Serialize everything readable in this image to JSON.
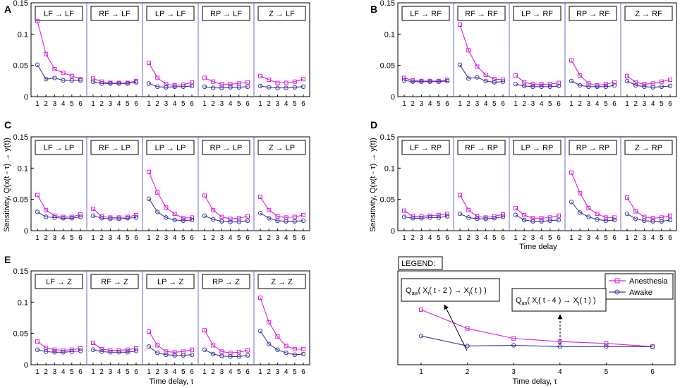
{
  "figure": {
    "panel_letters": [
      "A",
      "B",
      "C",
      "D",
      "E"
    ],
    "ylabel": "Sensitivity, Q(x(t - τ) → y(t))",
    "xlabel_D": "Time delay",
    "xlabel_E": "Time delay, τ",
    "x_ticks": [
      "1",
      "2",
      "3",
      "4",
      "5",
      "6"
    ],
    "y_ticks": [
      "0",
      "0.05",
      "0.1",
      "0.15"
    ]
  },
  "legend": {
    "title": "LEGEND:",
    "anesthesia_label": "Anesthesia",
    "awake_label": "Awake",
    "annotation_aw": "Q_aw(X_i(t-2) → X_j(t))",
    "annotation_an": "Q_an(X_i(t-4) → X_j(t))",
    "xlabel": "Time delay, τ",
    "x_ticks": [
      "1",
      "2",
      "3",
      "4",
      "5",
      "6"
    ]
  },
  "colors": {
    "anesthesia": "#d81fd8",
    "awake": "#3a3aa6",
    "divider": "#6b6bd0"
  },
  "chart_data": {
    "type": "line",
    "x": [
      1,
      2,
      3,
      4,
      5,
      6
    ],
    "ylim": [
      0,
      0.15
    ],
    "series_names": [
      "Anesthesia",
      "Awake"
    ],
    "panels": [
      {
        "letter": "A",
        "subplots": [
          {
            "label": "LF → LF",
            "anesthesia": [
              0.121,
              0.068,
              0.044,
              0.038,
              0.033,
              0.028
            ],
            "awake": [
              0.051,
              0.028,
              0.03,
              0.026,
              0.026,
              0.026
            ]
          },
          {
            "label": "RF → LF",
            "anesthesia": [
              0.029,
              0.024,
              0.022,
              0.022,
              0.022,
              0.025
            ],
            "awake": [
              0.024,
              0.021,
              0.021,
              0.021,
              0.021,
              0.023
            ]
          },
          {
            "label": "LP → LF",
            "anesthesia": [
              0.054,
              0.03,
              0.02,
              0.018,
              0.019,
              0.023
            ],
            "awake": [
              0.021,
              0.016,
              0.015,
              0.016,
              0.016,
              0.017
            ]
          },
          {
            "label": "RP → LF",
            "anesthesia": [
              0.03,
              0.024,
              0.02,
              0.02,
              0.021,
              0.023
            ],
            "awake": [
              0.016,
              0.014,
              0.014,
              0.015,
              0.015,
              0.016
            ]
          },
          {
            "label": "Z → LF",
            "anesthesia": [
              0.033,
              0.027,
              0.022,
              0.022,
              0.024,
              0.028
            ],
            "awake": [
              0.017,
              0.015,
              0.014,
              0.014,
              0.015,
              0.016
            ]
          }
        ]
      },
      {
        "letter": "B",
        "subplots": [
          {
            "label": "LF → RF",
            "anesthesia": [
              0.03,
              0.026,
              0.025,
              0.025,
              0.025,
              0.027
            ],
            "awake": [
              0.026,
              0.024,
              0.024,
              0.024,
              0.024,
              0.025
            ]
          },
          {
            "label": "RF → RF",
            "anesthesia": [
              0.115,
              0.074,
              0.048,
              0.035,
              0.028,
              0.027
            ],
            "awake": [
              0.051,
              0.029,
              0.031,
              0.025,
              0.023,
              0.024
            ]
          },
          {
            "label": "LP → RF",
            "anesthesia": [
              0.034,
              0.023,
              0.02,
              0.02,
              0.02,
              0.022
            ],
            "awake": [
              0.02,
              0.017,
              0.016,
              0.016,
              0.016,
              0.017
            ]
          },
          {
            "label": "RP → RF",
            "anesthesia": [
              0.058,
              0.034,
              0.021,
              0.018,
              0.02,
              0.023
            ],
            "awake": [
              0.025,
              0.018,
              0.016,
              0.016,
              0.016,
              0.018
            ]
          },
          {
            "label": "Z → RF",
            "anesthesia": [
              0.033,
              0.023,
              0.02,
              0.021,
              0.024,
              0.027
            ],
            "awake": [
              0.025,
              0.018,
              0.016,
              0.015,
              0.016,
              0.017
            ]
          }
        ]
      },
      {
        "letter": "C",
        "subplots": [
          {
            "label": "LF → LP",
            "anesthesia": [
              0.057,
              0.033,
              0.024,
              0.022,
              0.022,
              0.026
            ],
            "awake": [
              0.03,
              0.022,
              0.021,
              0.02,
              0.02,
              0.022
            ]
          },
          {
            "label": "RF → LP",
            "anesthesia": [
              0.035,
              0.023,
              0.021,
              0.021,
              0.022,
              0.025
            ],
            "awake": [
              0.024,
              0.02,
              0.019,
              0.019,
              0.02,
              0.021
            ]
          },
          {
            "label": "LP → LP",
            "anesthesia": [
              0.094,
              0.061,
              0.037,
              0.027,
              0.02,
              0.021
            ],
            "awake": [
              0.051,
              0.03,
              0.021,
              0.017,
              0.016,
              0.017
            ]
          },
          {
            "label": "RP → LP",
            "anesthesia": [
              0.056,
              0.033,
              0.022,
              0.019,
              0.02,
              0.023
            ],
            "awake": [
              0.024,
              0.018,
              0.015,
              0.014,
              0.014,
              0.016
            ]
          },
          {
            "label": "Z → LP",
            "anesthesia": [
              0.054,
              0.033,
              0.023,
              0.021,
              0.022,
              0.025
            ],
            "awake": [
              0.028,
              0.02,
              0.016,
              0.015,
              0.015,
              0.016
            ]
          }
        ]
      },
      {
        "letter": "D",
        "subplots": [
          {
            "label": "LF → RP",
            "anesthesia": [
              0.032,
              0.023,
              0.023,
              0.024,
              0.025,
              0.027
            ],
            "awake": [
              0.022,
              0.02,
              0.02,
              0.021,
              0.021,
              0.023
            ]
          },
          {
            "label": "RF → RP",
            "anesthesia": [
              0.057,
              0.033,
              0.023,
              0.021,
              0.023,
              0.026
            ],
            "awake": [
              0.027,
              0.021,
              0.019,
              0.019,
              0.02,
              0.022
            ]
          },
          {
            "label": "LP → RP",
            "anesthesia": [
              0.036,
              0.025,
              0.02,
              0.02,
              0.021,
              0.024
            ],
            "awake": [
              0.025,
              0.017,
              0.015,
              0.015,
              0.016,
              0.017
            ]
          },
          {
            "label": "RP → RP",
            "anesthesia": [
              0.093,
              0.06,
              0.036,
              0.027,
              0.021,
              0.021
            ],
            "awake": [
              0.046,
              0.029,
              0.022,
              0.018,
              0.016,
              0.017
            ]
          },
          {
            "label": "Z → RP",
            "anesthesia": [
              0.053,
              0.031,
              0.022,
              0.02,
              0.021,
              0.024
            ],
            "awake": [
              0.027,
              0.019,
              0.016,
              0.015,
              0.015,
              0.017
            ]
          }
        ]
      },
      {
        "letter": "E",
        "subplots": [
          {
            "label": "LF → Z",
            "anesthesia": [
              0.037,
              0.027,
              0.024,
              0.023,
              0.024,
              0.026
            ],
            "awake": [
              0.024,
              0.021,
              0.02,
              0.02,
              0.021,
              0.022
            ]
          },
          {
            "label": "RF → Z",
            "anesthesia": [
              0.035,
              0.025,
              0.023,
              0.023,
              0.024,
              0.026
            ],
            "awake": [
              0.024,
              0.021,
              0.02,
              0.02,
              0.02,
              0.022
            ]
          },
          {
            "label": "LP → Z",
            "anesthesia": [
              0.053,
              0.031,
              0.021,
              0.02,
              0.021,
              0.024
            ],
            "awake": [
              0.029,
              0.019,
              0.016,
              0.015,
              0.015,
              0.016
            ]
          },
          {
            "label": "RP → Z",
            "anesthesia": [
              0.055,
              0.031,
              0.021,
              0.019,
              0.02,
              0.023
            ],
            "awake": [
              0.024,
              0.017,
              0.014,
              0.013,
              0.013,
              0.015
            ]
          },
          {
            "label": "Z → Z",
            "anesthesia": [
              0.107,
              0.068,
              0.045,
              0.03,
              0.025,
              0.025
            ],
            "awake": [
              0.054,
              0.033,
              0.024,
              0.019,
              0.016,
              0.017
            ]
          }
        ]
      }
    ],
    "legend_example": {
      "anesthesia": [
        0.088,
        0.058,
        0.042,
        0.037,
        0.034,
        0.029
      ],
      "awake": [
        0.046,
        0.03,
        0.031,
        0.029,
        0.029,
        0.029
      ]
    }
  }
}
